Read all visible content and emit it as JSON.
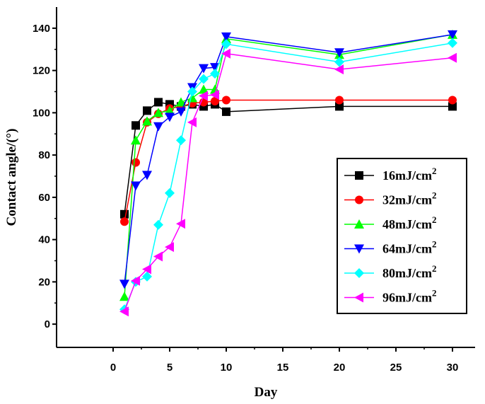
{
  "chart_data": {
    "type": "line",
    "xlabel": "Day",
    "ylabel": "Contact angle/(°)",
    "xlim": [
      -5,
      32
    ],
    "ylim": [
      -11,
      150
    ],
    "xticks": [
      0,
      5,
      10,
      15,
      20,
      25,
      30
    ],
    "yticks": [
      0,
      20,
      40,
      60,
      80,
      100,
      120,
      140
    ],
    "legend_position": "right",
    "series": [
      {
        "name": "16mJ/cm",
        "sup": "2",
        "color": "#000000",
        "marker": "square",
        "x": [
          1,
          2,
          3,
          4,
          5,
          6,
          7,
          8,
          9,
          10,
          20,
          30
        ],
        "y": [
          52,
          94,
          101,
          105,
          104,
          103,
          104,
          103,
          104,
          100.5,
          103,
          103
        ]
      },
      {
        "name": "32mJ/cm",
        "sup": "2",
        "color": "#ff0000",
        "marker": "circle",
        "x": [
          1,
          2,
          3,
          4,
          5,
          6,
          7,
          8,
          9,
          10,
          20,
          30
        ],
        "y": [
          48.5,
          76.5,
          95.5,
          99.5,
          102,
          103,
          104.5,
          105,
          105.5,
          106,
          106,
          106
        ]
      },
      {
        "name": "48mJ/cm",
        "sup": "2",
        "color": "#00ff00",
        "marker": "triangle-up",
        "x": [
          1,
          2,
          3,
          4,
          5,
          6,
          7,
          8,
          9,
          10,
          20,
          30
        ],
        "y": [
          13,
          87,
          96,
          100,
          101,
          105,
          107,
          111,
          111,
          135,
          127.5,
          137
        ]
      },
      {
        "name": "64mJ/cm",
        "sup": "2",
        "color": "#0000ff",
        "marker": "triangle-down",
        "x": [
          1,
          2,
          3,
          4,
          5,
          6,
          7,
          8,
          9,
          10,
          20,
          30
        ],
        "y": [
          19,
          65.5,
          70.5,
          93.5,
          98,
          100.5,
          112,
          121,
          121.5,
          136,
          128.5,
          137
        ]
      },
      {
        "name": "80mJ/cm",
        "sup": "2",
        "color": "#00ffff",
        "marker": "diamond",
        "x": [
          1,
          2,
          3,
          4,
          5,
          6,
          7,
          8,
          9,
          10,
          20,
          30
        ],
        "y": [
          7,
          20,
          22.5,
          47,
          62,
          87,
          110,
          116,
          118.5,
          132.5,
          124,
          133
        ]
      },
      {
        "name": "96mJ/cm",
        "sup": "2",
        "color": "#ff00ff",
        "marker": "triangle-left",
        "x": [
          1,
          2,
          3,
          4,
          5,
          6,
          7,
          8,
          9,
          10,
          20,
          30
        ],
        "y": [
          6,
          20.5,
          26,
          32,
          36.5,
          47.5,
          95.5,
          108,
          108.5,
          128,
          120.5,
          126
        ]
      }
    ]
  }
}
